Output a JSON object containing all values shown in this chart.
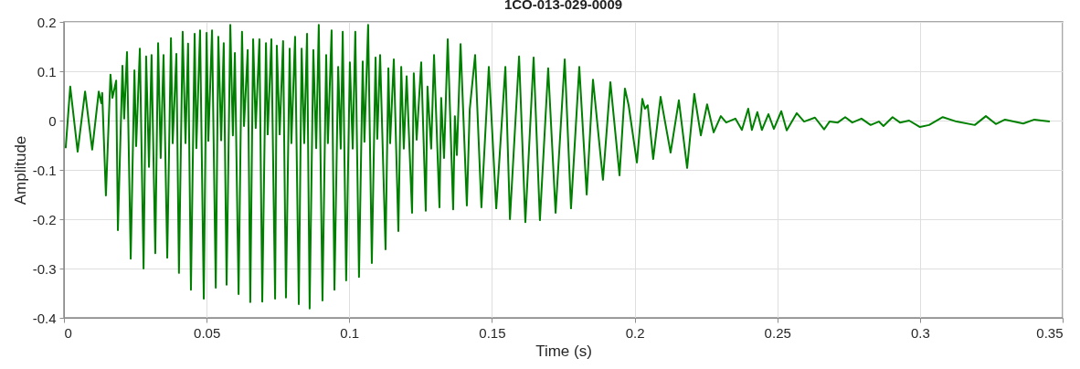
{
  "chart_data": {
    "type": "line",
    "title": "1CO-013-029-0009",
    "xlabel": "Time (s)",
    "ylabel": "Amplitude",
    "color": "#008000",
    "grid": true,
    "xlim": [
      0,
      0.35
    ],
    "ylim": [
      -0.4,
      0.2
    ],
    "xticks": [
      0,
      0.05,
      0.1,
      0.15,
      0.2,
      0.25,
      0.3,
      0.35
    ],
    "yticks": [
      -0.4,
      -0.3,
      -0.2,
      -0.1,
      0,
      0.1,
      0.2
    ],
    "x": [
      0.0006,
      0.0022,
      0.0048,
      0.0074,
      0.0099,
      0.0122,
      0.0131,
      0.0134,
      0.0147,
      0.0163,
      0.017,
      0.0183,
      0.0189,
      0.0205,
      0.0211,
      0.0221,
      0.0234,
      0.0247,
      0.0253,
      0.0266,
      0.0279,
      0.0288,
      0.0298,
      0.0307,
      0.032,
      0.033,
      0.0339,
      0.0349,
      0.0362,
      0.0375,
      0.0381,
      0.0394,
      0.0403,
      0.0416,
      0.0426,
      0.0435,
      0.0445,
      0.0458,
      0.0464,
      0.0477,
      0.049,
      0.05,
      0.0506,
      0.0519,
      0.0532,
      0.0541,
      0.0551,
      0.056,
      0.057,
      0.0583,
      0.0592,
      0.0599,
      0.0612,
      0.0624,
      0.0631,
      0.0644,
      0.0653,
      0.0663,
      0.0672,
      0.0685,
      0.0695,
      0.0708,
      0.0714,
      0.0727,
      0.074,
      0.0746,
      0.0756,
      0.0768,
      0.0778,
      0.0791,
      0.0797,
      0.081,
      0.0823,
      0.0833,
      0.0842,
      0.0852,
      0.0861,
      0.0874,
      0.0884,
      0.0893,
      0.0906,
      0.0919,
      0.0925,
      0.0938,
      0.0948,
      0.0961,
      0.097,
      0.0977,
      0.0989,
      0.1002,
      0.1012,
      0.1021,
      0.1034,
      0.1047,
      0.1053,
      0.1066,
      0.1079,
      0.1092,
      0.1098,
      0.1108,
      0.1127,
      0.1137,
      0.1143,
      0.1156,
      0.1172,
      0.1182,
      0.1191,
      0.1201,
      0.122,
      0.1226,
      0.1236,
      0.1252,
      0.1268,
      0.1274,
      0.1287,
      0.1297,
      0.1316,
      0.1322,
      0.1332,
      0.1345,
      0.1364,
      0.137,
      0.1377,
      0.139,
      0.1412,
      0.1422,
      0.1441,
      0.1463,
      0.1489,
      0.1515,
      0.1547,
      0.1563,
      0.1595,
      0.1617,
      0.1646,
      0.1668,
      0.1697,
      0.1723,
      0.1755,
      0.1777,
      0.1806,
      0.1832,
      0.1854,
      0.1889,
      0.1915,
      0.1947,
      0.1966,
      0.1979,
      0.2008,
      0.2027,
      0.2036,
      0.2046,
      0.2065,
      0.2091,
      0.2126,
      0.2155,
      0.2184,
      0.2209,
      0.2232,
      0.2254,
      0.2277,
      0.2302,
      0.2321,
      0.2353,
      0.2376,
      0.2398,
      0.2411,
      0.243,
      0.2446,
      0.2469,
      0.2488,
      0.2514,
      0.2533,
      0.2568,
      0.2594,
      0.2632,
      0.2664,
      0.2683,
      0.2712,
      0.2738,
      0.2763,
      0.2795,
      0.2827,
      0.2856,
      0.2872,
      0.2904,
      0.293,
      0.2962,
      0.3,
      0.3032,
      0.308,
      0.3128,
      0.3192,
      0.3231,
      0.3266,
      0.3298,
      0.3362,
      0.3401,
      0.3426,
      0.3455
    ],
    "values": [
      -0.056,
      0.069,
      -0.063,
      0.059,
      -0.059,
      0.059,
      0.035,
      0.056,
      -0.152,
      0.093,
      0.046,
      0.081,
      -0.222,
      0.111,
      0.004,
      0.139,
      -0.28,
      0.102,
      -0.052,
      0.146,
      -0.3,
      0.13,
      -0.094,
      0.133,
      -0.269,
      0.157,
      -0.076,
      0.133,
      -0.278,
      0.167,
      -0.046,
      0.135,
      -0.309,
      0.18,
      -0.046,
      0.156,
      -0.343,
      0.176,
      -0.056,
      0.183,
      -0.361,
      0.178,
      -0.041,
      0.183,
      -0.339,
      0.17,
      -0.04,
      0.157,
      -0.333,
      0.194,
      -0.03,
      0.137,
      -0.352,
      0.18,
      -0.011,
      0.143,
      -0.368,
      0.165,
      -0.015,
      0.165,
      -0.367,
      0.157,
      -0.028,
      0.165,
      -0.361,
      0.152,
      -0.028,
      0.161,
      -0.359,
      0.146,
      -0.046,
      0.17,
      -0.372,
      0.146,
      -0.046,
      0.176,
      -0.381,
      0.143,
      -0.056,
      0.194,
      -0.365,
      0.133,
      -0.046,
      0.183,
      -0.343,
      0.109,
      -0.057,
      0.18,
      -0.324,
      0.118,
      -0.057,
      0.18,
      -0.317,
      0.12,
      -0.043,
      0.194,
      -0.289,
      0.128,
      -0.037,
      0.133,
      -0.261,
      0.106,
      -0.046,
      0.124,
      -0.224,
      0.109,
      -0.057,
      0.09,
      -0.187,
      0.096,
      -0.039,
      0.118,
      -0.183,
      0.069,
      -0.057,
      0.133,
      -0.176,
      0.046,
      -0.076,
      0.165,
      -0.18,
      0.009,
      -0.07,
      0.155,
      -0.172,
      0.022,
      0.133,
      -0.176,
      0.109,
      -0.178,
      0.109,
      -0.2,
      0.13,
      -0.206,
      0.128,
      -0.202,
      0.106,
      -0.187,
      0.124,
      -0.178,
      0.109,
      -0.15,
      0.083,
      -0.12,
      0.078,
      -0.111,
      0.065,
      0.031,
      -0.085,
      0.044,
      0.024,
      0.031,
      -0.078,
      0.048,
      -0.065,
      0.041,
      -0.096,
      0.054,
      -0.03,
      0.033,
      -0.024,
      0.009,
      -0.004,
      0.004,
      -0.019,
      0.024,
      -0.019,
      0.017,
      -0.019,
      0.013,
      -0.017,
      0.019,
      -0.02,
      0.015,
      -0.002,
      0.006,
      -0.018,
      -0.002,
      -0.004,
      0.007,
      -0.004,
      0.004,
      -0.009,
      -0.002,
      -0.011,
      0.007,
      -0.004,
      0.0,
      -0.013,
      -0.009,
      0.007,
      -0.002,
      -0.009,
      0.009,
      -0.007,
      0.002,
      -0.006,
      0.002,
      0.0,
      -0.002
    ]
  }
}
